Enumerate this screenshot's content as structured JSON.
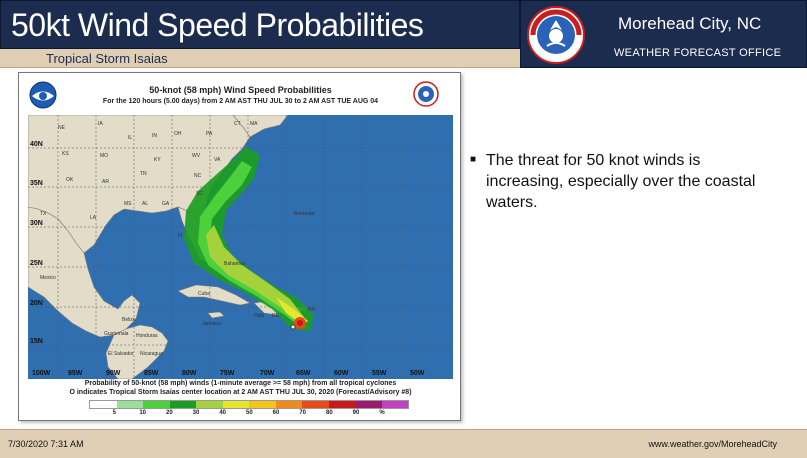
{
  "header": {
    "title": "50kt Wind Speed Probabilities",
    "subtitle": "Tropical Storm Isaias",
    "office_city": "Morehead City, NC",
    "office_label": "WEATHER FORECAST OFFICE",
    "logo_text": "NATIONAL WEATHER SERVICE"
  },
  "map": {
    "heading": "50-knot (58 mph) Wind Speed Probabilities",
    "subheading": "For the 120 hours (5.00 days) from 2 AM AST THU JUL 30 to 2 AM AST TUE AUG 04",
    "caption_line1": "Probability of 50-knot (58 mph) winds (1-minute average >= 58 mph) from all tropical cyclones",
    "caption_line2": "O indicates Tropical Storm Isaias center location at 2 AM AST THU JUL 30, 2020 (Forecast/Advisory #8)",
    "lat_labels": [
      "40N",
      "35N",
      "30N",
      "25N",
      "20N",
      "15N"
    ],
    "lon_labels": [
      "100W",
      "95W",
      "90W",
      "85W",
      "80W",
      "75W",
      "70W",
      "65W",
      "60W",
      "55W",
      "50W"
    ],
    "place_labels": [
      "NE",
      "IA",
      "IL",
      "IN",
      "OH",
      "PA",
      "KS",
      "MO",
      "KY",
      "WV",
      "VA",
      "OK",
      "AR",
      "TN",
      "NC",
      "SC",
      "TX",
      "MS",
      "AL",
      "GA",
      "LA",
      "FL",
      "Bermuda",
      "Mexico",
      "Bahamas",
      "Cuba",
      "Jamaica",
      "Haiti",
      "DR",
      "PR",
      "Honduras",
      "Nicaragua",
      "Belize",
      "Guatemala",
      "El Salvador",
      "CT",
      "MA"
    ],
    "scale_colors": [
      "#ffffff",
      "#9ae09a",
      "#4cd13c",
      "#1c9c22",
      "#a5d13a",
      "#e6e62e",
      "#f3c41e",
      "#f08a1c",
      "#e64a18",
      "#c81818",
      "#9b1b6e",
      "#c040c0"
    ],
    "scale_labels": [
      "5",
      "10",
      "20",
      "30",
      "40",
      "50",
      "60",
      "70",
      "80",
      "90",
      "%"
    ]
  },
  "bullet": {
    "text": "The threat for 50 knot winds is increasing, especially over the coastal waters."
  },
  "footer": {
    "date": "7/30/2020 7:31 AM",
    "url": "www.weather.gov/MoreheadCity"
  }
}
